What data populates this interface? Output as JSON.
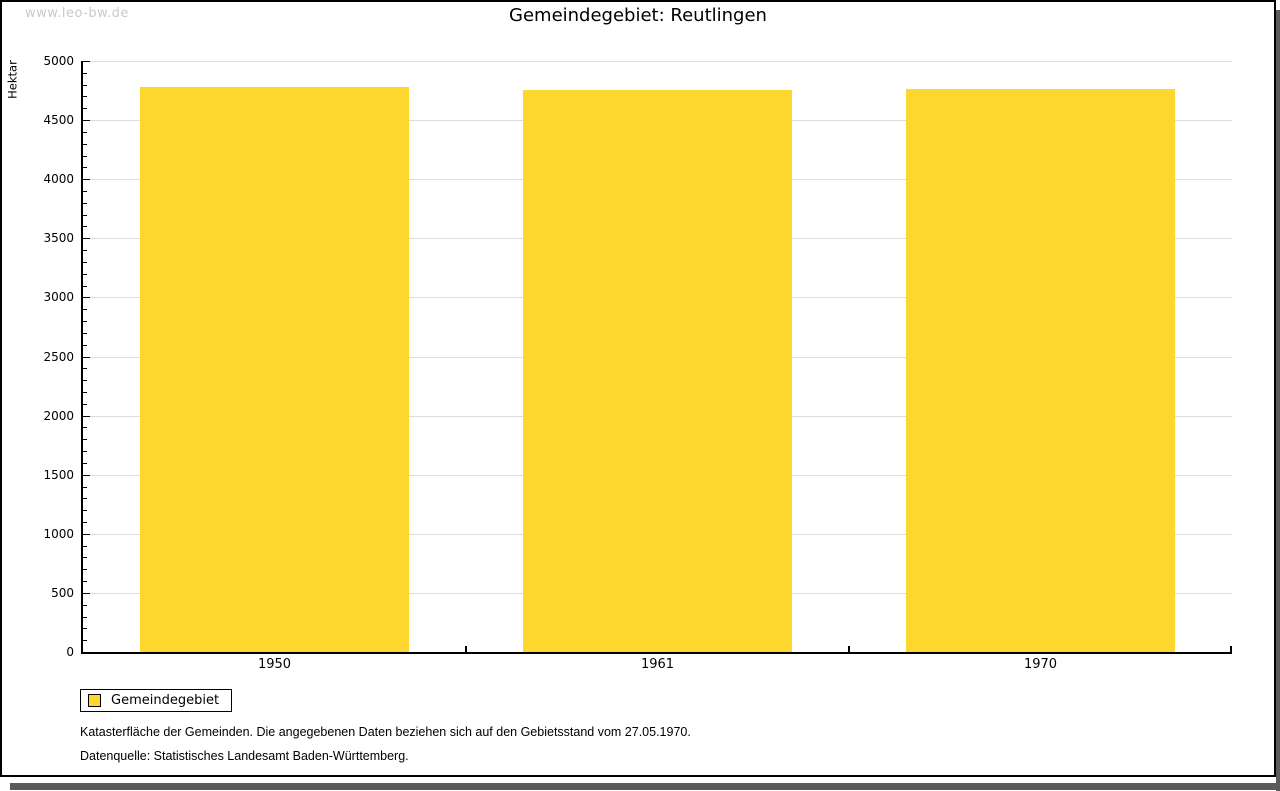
{
  "watermark": "www.leo-bw.de",
  "header": {
    "title": "Gemeindegebiet: Reutlingen"
  },
  "chart_data": {
    "type": "bar",
    "title": "Gemeindegebiet: Reutlingen",
    "ylabel": "Hektar",
    "xlabel": "",
    "categories": [
      "1950",
      "1961",
      "1970"
    ],
    "series": [
      {
        "name": "Gemeindegebiet",
        "values": [
          4776,
          4752,
          4766
        ],
        "color": "#fdd62e"
      }
    ],
    "ylim": [
      0,
      5000
    ],
    "ytick_major": 500,
    "ytick_minor": 100,
    "grid": true,
    "legend_position": "bottom-left"
  },
  "legend": {
    "items": [
      {
        "label": "Gemeindegebiet",
        "color": "#fdd62e"
      }
    ]
  },
  "footnotes": [
    "Katasterfläche der Gemeinden. Die angegebenen Daten beziehen sich auf den Gebietsstand vom 27.05.1970.",
    "Datenquelle: Statistisches Landesamt Baden-Württemberg."
  ],
  "colors": {
    "bar": "#fdd62e",
    "grid": "#dddddd",
    "axis": "#000000",
    "watermark": "#c9c9c9",
    "shadow": "#5b5b5b",
    "background": "#ffffff"
  }
}
